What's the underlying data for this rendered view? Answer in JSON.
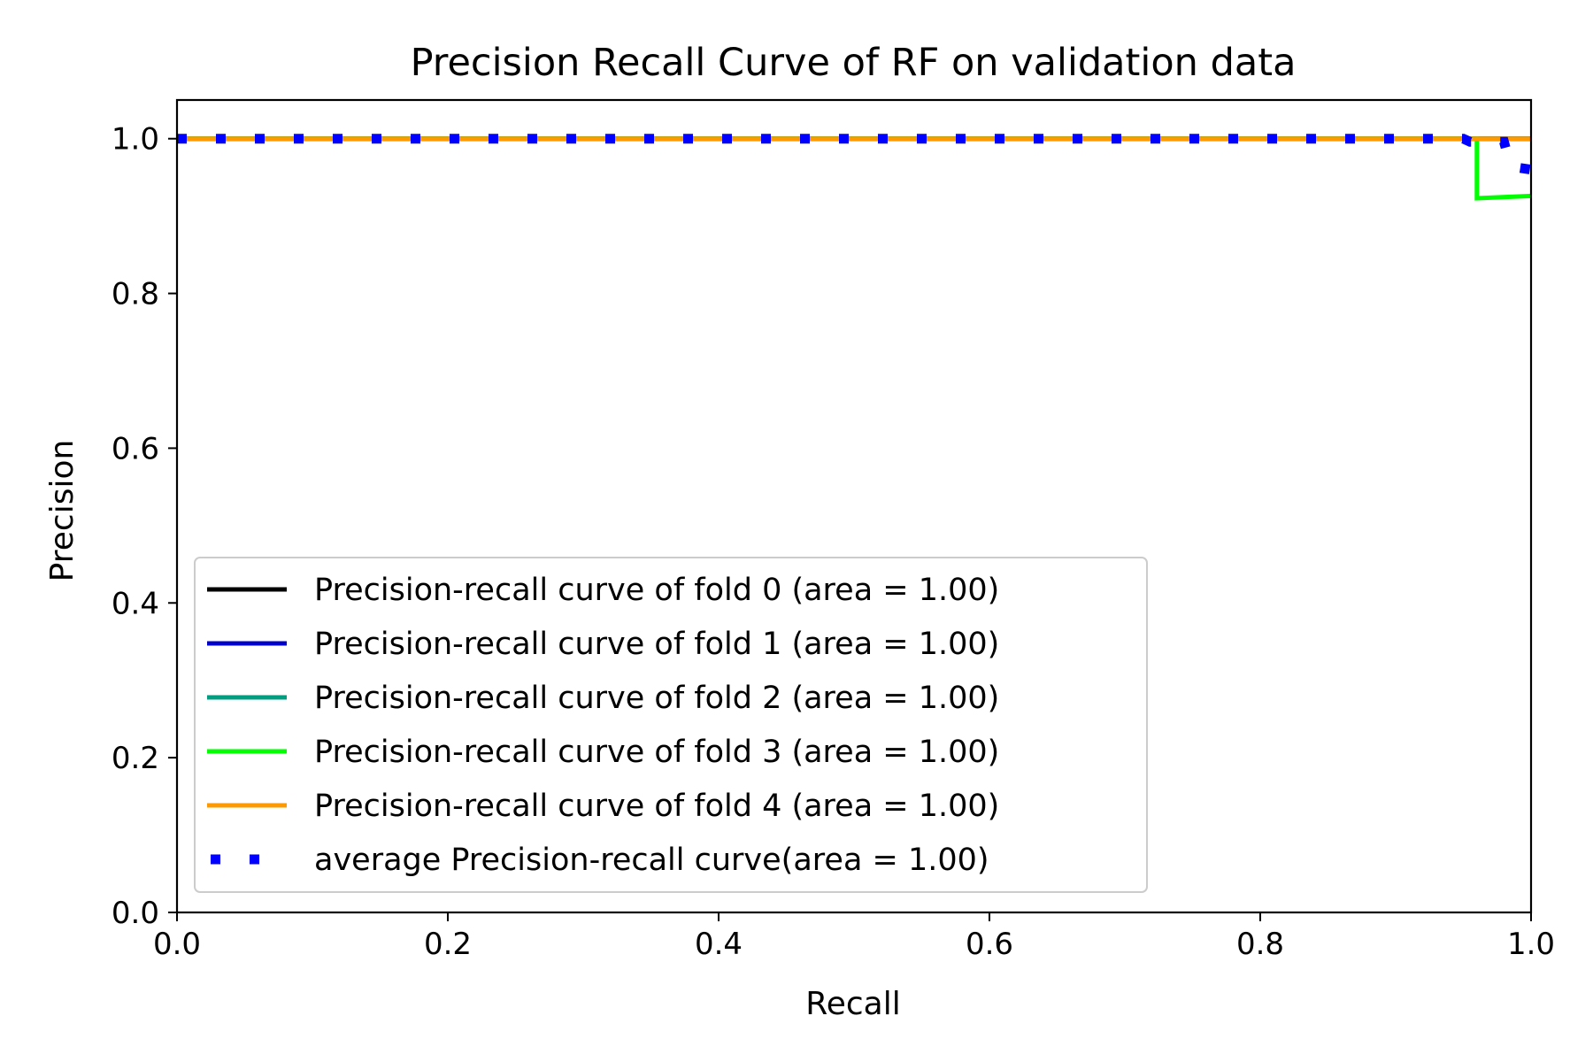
{
  "chart_data": {
    "type": "line",
    "title": "Precision Recall Curve of RF on validation data",
    "xlabel": "Recall",
    "ylabel": "Precision",
    "xlim": [
      0.0,
      1.0
    ],
    "ylim": [
      0.0,
      1.05
    ],
    "x_ticks": [
      "0.0",
      "0.2",
      "0.4",
      "0.6",
      "0.8",
      "1.0"
    ],
    "y_ticks": [
      "0.0",
      "0.2",
      "0.4",
      "0.6",
      "0.8",
      "1.0"
    ],
    "grid": false,
    "legend_position": "lower-left",
    "series": [
      {
        "name": "Precision-recall curve of fold 0 (area = 1.00)",
        "color": "#000000",
        "style": "solid",
        "x": [
          0.0,
          1.0
        ],
        "y": [
          1.0,
          1.0
        ]
      },
      {
        "name": "Precision-recall curve of fold 1 (area = 1.00)",
        "color": "#0000cd",
        "style": "solid",
        "x": [
          0.0,
          1.0
        ],
        "y": [
          1.0,
          1.0
        ]
      },
      {
        "name": "Precision-recall curve of fold 2 (area = 1.00)",
        "color": "#009e80",
        "style": "solid",
        "x": [
          0.0,
          1.0
        ],
        "y": [
          1.0,
          1.0
        ]
      },
      {
        "name": "Precision-recall curve of fold 3 (area = 1.00)",
        "color": "#00ff00",
        "style": "solid",
        "x": [
          0.0,
          0.96,
          0.96,
          1.0
        ],
        "y": [
          1.0,
          1.0,
          0.923,
          0.926
        ]
      },
      {
        "name": "Precision-recall curve of fold 4 (area = 1.00)",
        "color": "#ff9900",
        "style": "solid",
        "x": [
          0.0,
          1.0
        ],
        "y": [
          1.0,
          1.0
        ]
      },
      {
        "name": "average Precision-recall curve(area = 1.00)",
        "color": "#0000ff",
        "style": "dotted",
        "x": [
          0.0,
          0.95,
          0.955,
          0.98,
          0.985,
          1.0
        ],
        "y": [
          1.0,
          1.0,
          0.996,
          0.996,
          0.964,
          0.96
        ]
      }
    ]
  }
}
